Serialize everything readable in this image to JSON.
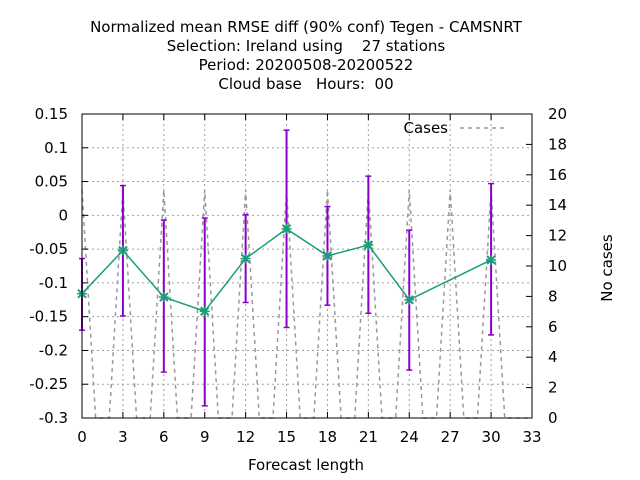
{
  "chart_data": {
    "type": "line",
    "title_lines": [
      "Normalized mean RMSE diff (90% conf) Tegen - CAMSNRT",
      "Selection: Ireland using    27 stations",
      "Period: 20200508-20200522",
      "Cloud base   Hours:  00"
    ],
    "xlabel": "Forecast length",
    "ylabel": "",
    "y2label": "No cases",
    "xlim": [
      0,
      33
    ],
    "ylim": [
      -0.3,
      0.15
    ],
    "y2lim": [
      0,
      20
    ],
    "xticks": [
      0,
      3,
      6,
      9,
      12,
      15,
      18,
      21,
      24,
      27,
      30,
      33
    ],
    "yticks": [
      "-0.3",
      "-0.25",
      "-0.2",
      "-0.15",
      "-0.1",
      "-0.05",
      "0",
      "0.05",
      "0.1",
      "0.15"
    ],
    "y2ticks": [
      "0",
      "2",
      "4",
      "6",
      "8",
      "10",
      "12",
      "14",
      "16",
      "18",
      "20"
    ],
    "grid": true,
    "legend_position": "top-right",
    "series": [
      {
        "x": [
          0,
          3,
          6,
          9,
          12,
          15,
          18,
          21,
          24,
          30
        ],
        "y": [
          -0.116,
          -0.052,
          -0.121,
          -0.142,
          -0.064,
          -0.02,
          -0.06,
          -0.044,
          -0.125,
          -0.066
        ],
        "error_low": [
          -0.17,
          -0.149,
          -0.232,
          -0.282,
          -0.129,
          -0.166,
          -0.133,
          -0.145,
          -0.229,
          -0.177
        ],
        "error_high": [
          -0.064,
          0.044,
          -0.007,
          -0.004,
          0.001,
          0.126,
          0.013,
          0.058,
          -0.022,
          0.047
        ],
        "color": "#1a9e77",
        "error_color": "#8b00c8"
      },
      {
        "name": "Cases",
        "axis": "y2",
        "x": [
          0,
          1,
          2,
          3,
          4,
          5,
          6,
          7,
          8,
          9,
          10,
          11,
          12,
          13,
          14,
          15,
          16,
          17,
          18,
          19,
          20,
          21,
          22,
          23,
          24,
          25,
          26,
          27,
          28,
          29,
          30,
          31,
          32,
          33
        ],
        "y": [
          15,
          0,
          0,
          15,
          0,
          0,
          15,
          0,
          0,
          15,
          0,
          0,
          15,
          0,
          0,
          15,
          0,
          0,
          15,
          0,
          0,
          15,
          0,
          0,
          15,
          0,
          0,
          15,
          0,
          0,
          15,
          0,
          0,
          0
        ],
        "color": "#999999",
        "dash": true
      }
    ]
  }
}
